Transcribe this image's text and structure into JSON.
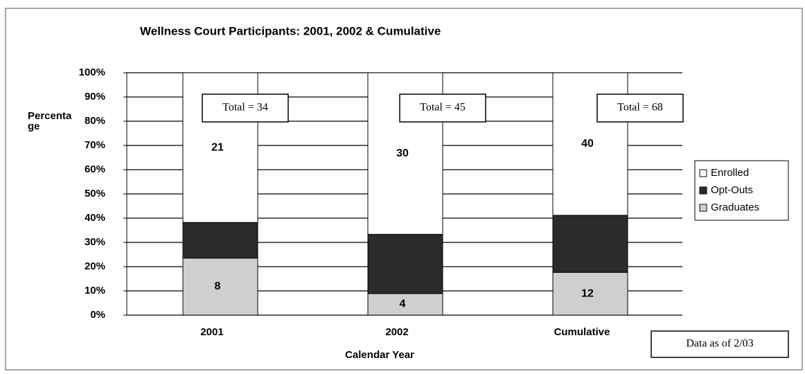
{
  "chart_data": {
    "type": "stacked_percent_bar",
    "title": "Wellness Court Participants: 2001, 2002 & Cumulative",
    "x_label": "Calendar Year",
    "y_label": "Percentage",
    "categories": [
      "2001",
      "2002",
      "Cumulative"
    ],
    "series": [
      {
        "name": "Graduates",
        "color": "#cfcfcf",
        "values": [
          8,
          4,
          12
        ],
        "labels": true
      },
      {
        "name": "Opt-Outs",
        "color": "#2b2b2b",
        "values": [
          5,
          11,
          16
        ],
        "labels": false
      },
      {
        "name": "Enrolled",
        "color": "#ffffff",
        "values": [
          21,
          30,
          40
        ],
        "labels": true
      }
    ],
    "totals": [
      "Total = 34",
      "Total = 45",
      "Total = 68"
    ],
    "note": "Data as of 2/03",
    "ylim": [
      0,
      100
    ],
    "yticks": [
      {
        "value": 0,
        "label": "0%"
      },
      {
        "value": 10,
        "label": "10%"
      },
      {
        "value": 20,
        "label": "20%"
      },
      {
        "value": 30,
        "label": "30%"
      },
      {
        "value": 40,
        "label": "40%"
      },
      {
        "value": 50,
        "label": "50%"
      },
      {
        "value": 60,
        "label": "60%"
      },
      {
        "value": 70,
        "label": "70%"
      },
      {
        "value": 80,
        "label": "80%"
      },
      {
        "value": 90,
        "label": "90%"
      },
      {
        "value": 100,
        "label": "100%"
      }
    ],
    "grid": true,
    "legend": "right"
  }
}
